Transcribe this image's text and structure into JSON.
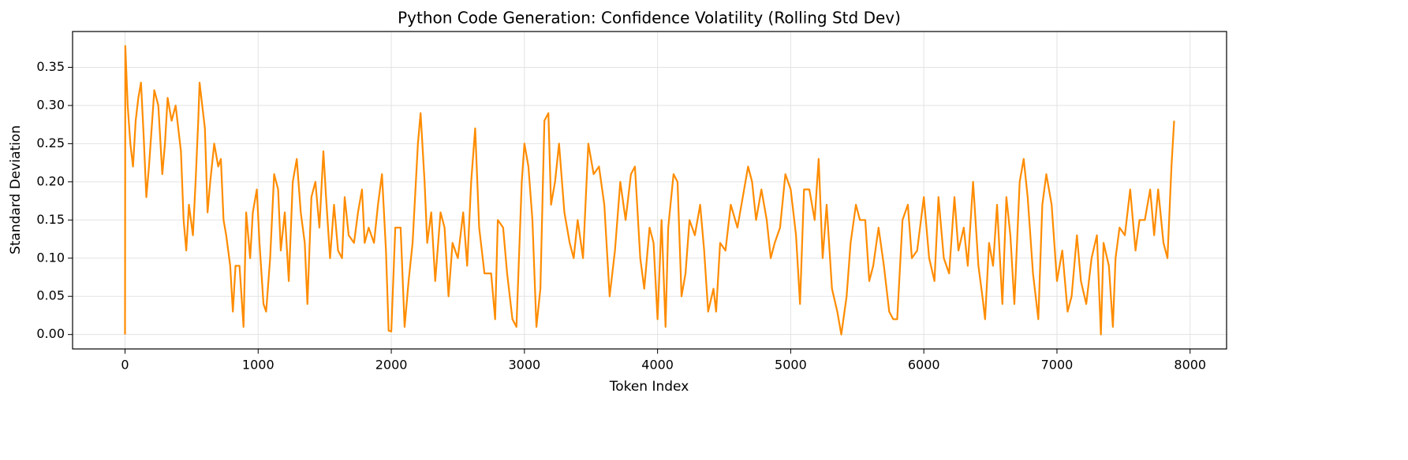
{
  "chart_data": {
    "type": "line",
    "title": "Python Code Generation: Confidence Volatility (Rolling Std Dev)",
    "x_label": "Token Index",
    "y_label": "Standard Deviation",
    "color": "#ff8c00",
    "grid": true,
    "xlim": [
      -394,
      8274
    ],
    "ylim": [
      -0.0189,
      0.3969
    ],
    "xticks": [
      0,
      1000,
      2000,
      3000,
      4000,
      5000,
      6000,
      7000,
      8000
    ],
    "yticks": [
      {
        "value": 0,
        "label": "0.00"
      },
      {
        "value": 0.05,
        "label": "0.05"
      },
      {
        "value": 0.1,
        "label": "0.10"
      },
      {
        "value": 0.15,
        "label": "0.15"
      },
      {
        "value": 0.2,
        "label": "0.20"
      },
      {
        "value": 0.25,
        "label": "0.25"
      },
      {
        "value": 0.3,
        "label": "0.30"
      },
      {
        "value": 0.35,
        "label": "0.35"
      }
    ],
    "x": [
      0,
      2,
      20,
      40,
      60,
      80,
      100,
      120,
      140,
      160,
      180,
      200,
      220,
      250,
      280,
      300,
      320,
      350,
      380,
      400,
      420,
      440,
      460,
      480,
      510,
      530,
      550,
      560,
      580,
      600,
      620,
      640,
      670,
      700,
      720,
      740,
      760,
      790,
      810,
      830,
      860,
      890,
      910,
      940,
      960,
      990,
      1010,
      1040,
      1060,
      1090,
      1120,
      1150,
      1170,
      1200,
      1230,
      1260,
      1290,
      1320,
      1350,
      1370,
      1400,
      1430,
      1460,
      1490,
      1510,
      1540,
      1570,
      1600,
      1630,
      1650,
      1680,
      1720,
      1750,
      1780,
      1800,
      1830,
      1870,
      1900,
      1930,
      1960,
      1980,
      2000,
      2030,
      2070,
      2100,
      2130,
      2160,
      2200,
      2220,
      2250,
      2270,
      2300,
      2330,
      2370,
      2400,
      2430,
      2460,
      2500,
      2540,
      2570,
      2600,
      2630,
      2660,
      2700,
      2750,
      2780,
      2800,
      2840,
      2870,
      2910,
      2940,
      2980,
      3000,
      3030,
      3060,
      3090,
      3120,
      3150,
      3180,
      3200,
      3230,
      3260,
      3300,
      3340,
      3370,
      3400,
      3440,
      3480,
      3520,
      3560,
      3600,
      3640,
      3680,
      3720,
      3760,
      3800,
      3830,
      3870,
      3900,
      3940,
      3970,
      4000,
      4030,
      4060,
      4080,
      4120,
      4150,
      4180,
      4210,
      4240,
      4280,
      4320,
      4350,
      4380,
      4420,
      4440,
      4470,
      4510,
      4550,
      4600,
      4640,
      4680,
      4710,
      4740,
      4780,
      4820,
      4850,
      4880,
      4920,
      4960,
      5000,
      5040,
      5070,
      5100,
      5140,
      5180,
      5210,
      5240,
      5270,
      5310,
      5350,
      5380,
      5420,
      5450,
      5490,
      5520,
      5560,
      5590,
      5620,
      5660,
      5700,
      5740,
      5770,
      5800,
      5840,
      5880,
      5910,
      5950,
      6000,
      6040,
      6080,
      6110,
      6150,
      6190,
      6230,
      6260,
      6300,
      6330,
      6370,
      6410,
      6440,
      6460,
      6490,
      6520,
      6550,
      6590,
      6620,
      6650,
      6680,
      6720,
      6750,
      6780,
      6820,
      6860,
      6890,
      6920,
      6960,
      7000,
      7040,
      7080,
      7110,
      7150,
      7180,
      7220,
      7260,
      7300,
      7330,
      7350,
      7390,
      7420,
      7440,
      7470,
      7510,
      7550,
      7590,
      7620,
      7660,
      7700,
      7730,
      7760,
      7800,
      7830,
      7860,
      7880
    ],
    "values": [
      0,
      0.378,
      0.3,
      0.25,
      0.22,
      0.28,
      0.31,
      0.33,
      0.26,
      0.18,
      0.22,
      0.27,
      0.32,
      0.3,
      0.21,
      0.25,
      0.31,
      0.28,
      0.3,
      0.27,
      0.24,
      0.15,
      0.11,
      0.17,
      0.13,
      0.2,
      0.28,
      0.33,
      0.3,
      0.27,
      0.16,
      0.2,
      0.25,
      0.22,
      0.23,
      0.15,
      0.13,
      0.09,
      0.03,
      0.09,
      0.09,
      0.01,
      0.16,
      0.1,
      0.16,
      0.19,
      0.12,
      0.04,
      0.03,
      0.1,
      0.21,
      0.19,
      0.11,
      0.16,
      0.07,
      0.2,
      0.23,
      0.16,
      0.12,
      0.04,
      0.18,
      0.2,
      0.14,
      0.24,
      0.18,
      0.1,
      0.17,
      0.11,
      0.1,
      0.18,
      0.13,
      0.12,
      0.16,
      0.19,
      0.12,
      0.14,
      0.12,
      0.17,
      0.21,
      0.11,
      0.005,
      0.004,
      0.14,
      0.14,
      0.01,
      0.07,
      0.12,
      0.25,
      0.29,
      0.2,
      0.12,
      0.16,
      0.07,
      0.16,
      0.14,
      0.05,
      0.12,
      0.1,
      0.16,
      0.09,
      0.2,
      0.27,
      0.14,
      0.08,
      0.08,
      0.02,
      0.15,
      0.14,
      0.08,
      0.02,
      0.01,
      0.2,
      0.25,
      0.22,
      0.15,
      0.01,
      0.06,
      0.28,
      0.29,
      0.17,
      0.2,
      0.25,
      0.16,
      0.12,
      0.1,
      0.15,
      0.1,
      0.25,
      0.21,
      0.22,
      0.17,
      0.05,
      0.11,
      0.2,
      0.15,
      0.21,
      0.22,
      0.1,
      0.06,
      0.14,
      0.12,
      0.02,
      0.15,
      0.01,
      0.14,
      0.21,
      0.2,
      0.05,
      0.08,
      0.15,
      0.13,
      0.17,
      0.11,
      0.03,
      0.06,
      0.03,
      0.12,
      0.11,
      0.17,
      0.14,
      0.18,
      0.22,
      0.2,
      0.15,
      0.19,
      0.15,
      0.1,
      0.12,
      0.14,
      0.21,
      0.19,
      0.13,
      0.04,
      0.19,
      0.19,
      0.15,
      0.23,
      0.1,
      0.17,
      0.06,
      0.03,
      0.0,
      0.05,
      0.12,
      0.17,
      0.15,
      0.15,
      0.07,
      0.09,
      0.14,
      0.09,
      0.03,
      0.02,
      0.02,
      0.15,
      0.17,
      0.1,
      0.11,
      0.18,
      0.1,
      0.07,
      0.18,
      0.1,
      0.08,
      0.18,
      0.11,
      0.14,
      0.09,
      0.2,
      0.09,
      0.05,
      0.02,
      0.12,
      0.09,
      0.17,
      0.04,
      0.18,
      0.13,
      0.04,
      0.2,
      0.23,
      0.18,
      0.08,
      0.02,
      0.17,
      0.21,
      0.17,
      0.07,
      0.11,
      0.03,
      0.05,
      0.13,
      0.07,
      0.04,
      0.1,
      0.13,
      0.0,
      0.12,
      0.09,
      0.01,
      0.1,
      0.14,
      0.13,
      0.19,
      0.11,
      0.15,
      0.15,
      0.19,
      0.13,
      0.19,
      0.12,
      0.1,
      0.22,
      0.28
    ]
  }
}
